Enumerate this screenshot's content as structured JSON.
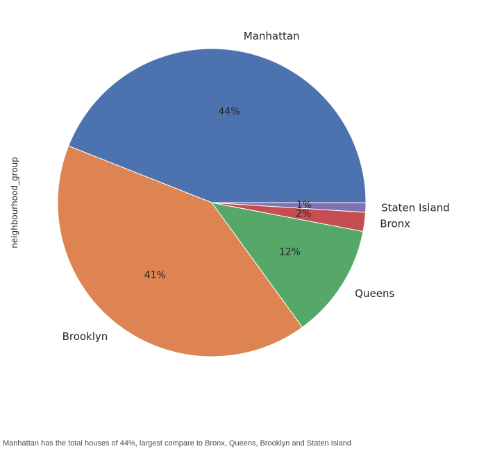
{
  "chart_data": {
    "type": "pie",
    "ylabel": "neighbourhood_group",
    "categories": [
      "Manhattan",
      "Brooklyn",
      "Queens",
      "Bronx",
      "Staten Island"
    ],
    "values": [
      44,
      41,
      12,
      2,
      1
    ],
    "percent_labels": [
      "44%",
      "41%",
      "12%",
      "2%",
      "1%"
    ],
    "colors": [
      "#4c72b0",
      "#dd8452",
      "#55a868",
      "#c44e52",
      "#8172b3"
    ],
    "start_angle": 0,
    "direction": "counterclockwise"
  },
  "caption": "Manhattan has the total houses of 44%, largest compare to Bronx, Queens, Brooklyn and Staten Island"
}
